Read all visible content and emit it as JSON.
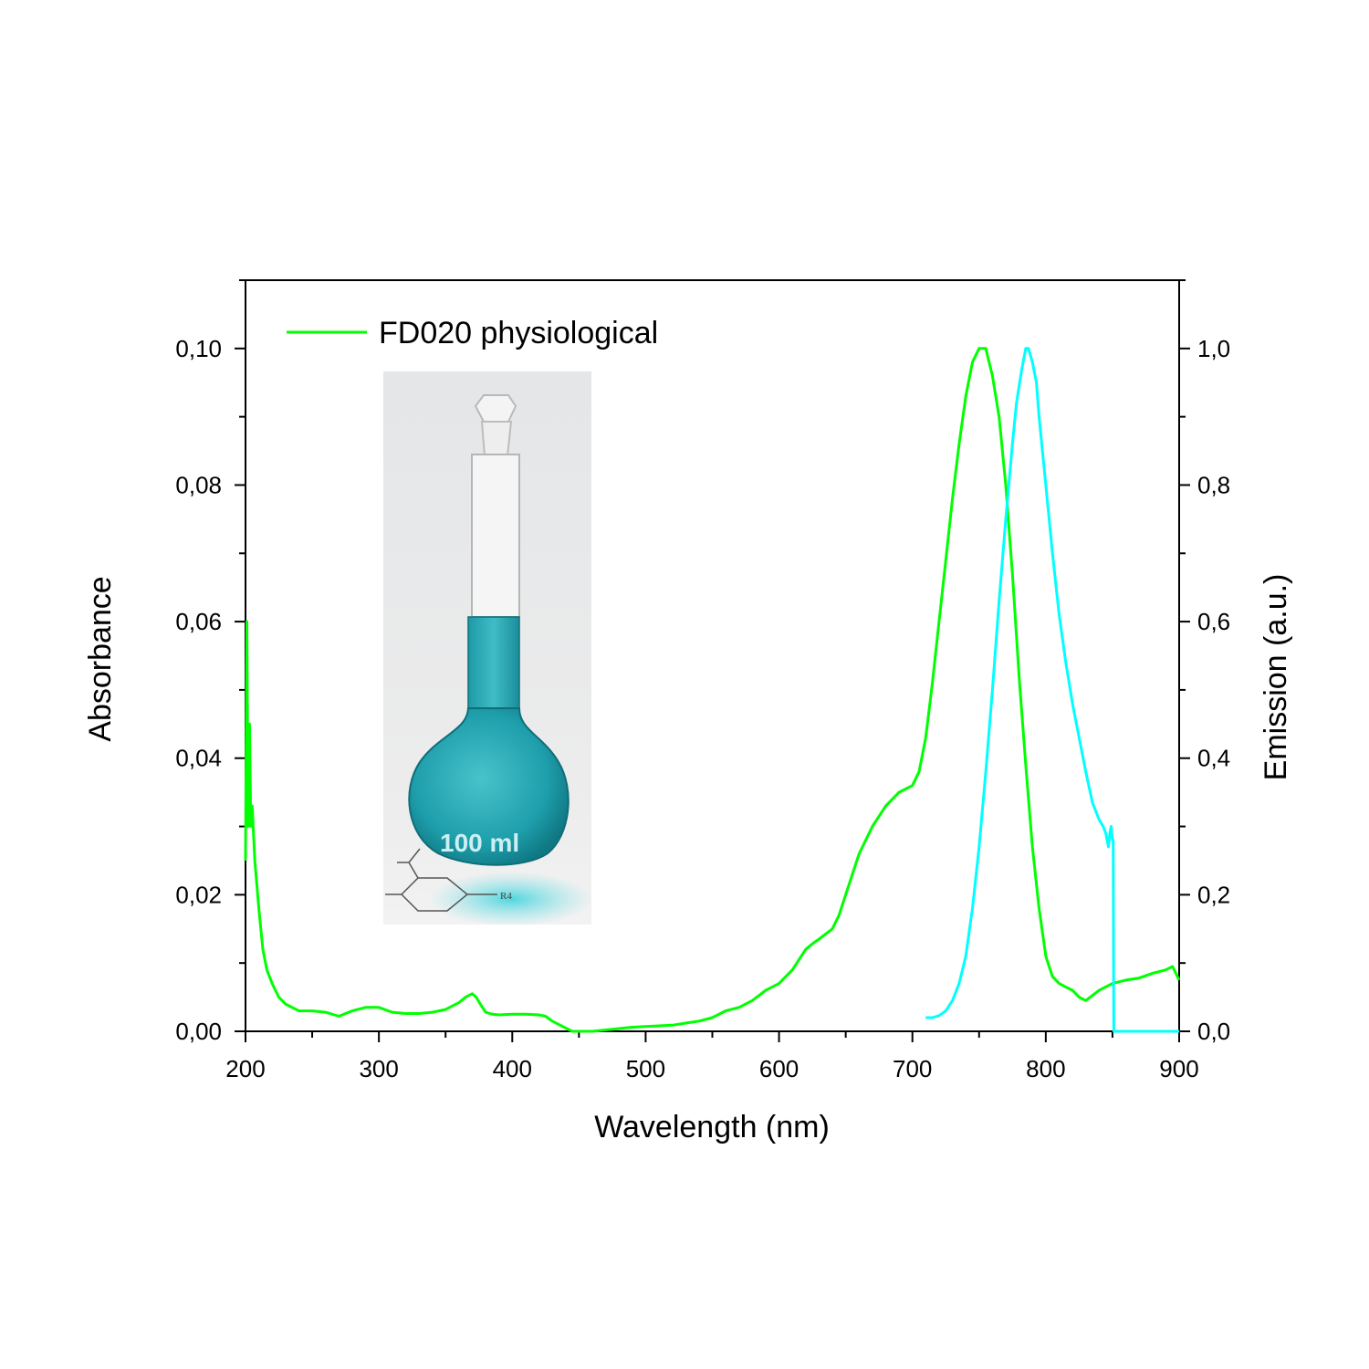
{
  "chart_data": {
    "type": "line",
    "legend": {
      "position": "top-left",
      "entries": [
        {
          "label": "FD020 physiological",
          "color": "#00ff00"
        }
      ]
    },
    "xlabel": "Wavelength (nm)",
    "ylabel_left": "Absorbance",
    "ylabel_right": "Emission (a.u.)",
    "xlim": [
      200,
      900
    ],
    "ylim_left": [
      0,
      0.11
    ],
    "ylim_right": [
      0,
      1.1
    ],
    "x_ticks": [
      "200",
      "300",
      "400",
      "500",
      "600",
      "700",
      "800",
      "900"
    ],
    "y_left_ticks": [
      "0,00",
      "0,02",
      "0,04",
      "0,06",
      "0,08",
      "0,10"
    ],
    "y_right_ticks": [
      "0,0",
      "0,2",
      "0,4",
      "0,6",
      "0,8",
      "1,0"
    ],
    "grid": false,
    "inset_image": {
      "subject": "volumetric flask with teal-blue solution",
      "flask_marking": "100 ml",
      "structure_label": "R4"
    },
    "series": [
      {
        "name": "FD020 physiological",
        "axis": "left",
        "color": "#00ff00",
        "x": [
          200,
          201,
          202,
          203,
          204,
          205,
          207,
          210,
          213,
          216,
          220,
          225,
          230,
          235,
          240,
          245,
          250,
          260,
          270,
          280,
          290,
          300,
          310,
          320,
          330,
          340,
          350,
          360,
          365,
          370,
          373,
          376,
          380,
          385,
          390,
          400,
          410,
          420,
          425,
          430,
          440,
          445,
          450,
          460,
          470,
          480,
          490,
          500,
          510,
          520,
          530,
          540,
          550,
          560,
          570,
          580,
          590,
          600,
          610,
          615,
          620,
          625,
          630,
          640,
          645,
          650,
          660,
          670,
          680,
          690,
          700,
          705,
          710,
          715,
          720,
          725,
          730,
          735,
          740,
          745,
          750,
          755,
          760,
          765,
          770,
          775,
          780,
          785,
          790,
          795,
          800,
          805,
          810,
          815,
          820,
          825,
          830,
          840,
          850,
          860,
          870,
          880,
          890,
          895,
          900
        ],
        "y": [
          0.025,
          0.06,
          0.03,
          0.045,
          0.03,
          0.033,
          0.025,
          0.018,
          0.012,
          0.009,
          0.007,
          0.005,
          0.004,
          0.0035,
          0.003,
          0.003,
          0.003,
          0.0028,
          0.0022,
          0.003,
          0.0035,
          0.0035,
          0.0028,
          0.0026,
          0.0026,
          0.0028,
          0.0032,
          0.0042,
          0.005,
          0.0055,
          0.005,
          0.004,
          0.0028,
          0.0025,
          0.0024,
          0.0025,
          0.0025,
          0.0024,
          0.0022,
          0.0015,
          0.0005,
          0.0,
          0.0,
          0.0,
          0.0002,
          0.0004,
          0.0006,
          0.0007,
          0.0008,
          0.0009,
          0.0012,
          0.0015,
          0.002,
          0.003,
          0.0035,
          0.0045,
          0.006,
          0.007,
          0.009,
          0.0105,
          0.012,
          0.0128,
          0.0135,
          0.015,
          0.017,
          0.02,
          0.026,
          0.03,
          0.033,
          0.035,
          0.036,
          0.038,
          0.043,
          0.051,
          0.06,
          0.069,
          0.078,
          0.086,
          0.093,
          0.098,
          0.1,
          0.1,
          0.096,
          0.09,
          0.08,
          0.067,
          0.052,
          0.039,
          0.027,
          0.018,
          0.011,
          0.008,
          0.007,
          0.0065,
          0.006,
          0.005,
          0.0045,
          0.006,
          0.007,
          0.0075,
          0.0078,
          0.0085,
          0.009,
          0.0095,
          0.0075
        ]
      },
      {
        "axis": "right",
        "color": "#00ffff",
        "x": [
          710,
          715,
          720,
          725,
          730,
          735,
          740,
          745,
          750,
          755,
          760,
          765,
          770,
          775,
          778,
          782,
          785,
          787,
          790,
          793,
          795,
          800,
          805,
          810,
          815,
          820,
          825,
          830,
          835,
          840,
          843,
          845,
          847,
          848,
          849,
          850,
          850.5,
          851,
          860,
          870,
          880,
          890,
          900
        ],
        "y": [
          0.02,
          0.02,
          0.023,
          0.03,
          0.045,
          0.07,
          0.11,
          0.18,
          0.27,
          0.38,
          0.5,
          0.63,
          0.75,
          0.86,
          0.92,
          0.97,
          1.0,
          1.0,
          0.98,
          0.95,
          0.9,
          0.8,
          0.7,
          0.61,
          0.54,
          0.48,
          0.43,
          0.38,
          0.335,
          0.31,
          0.3,
          0.29,
          0.27,
          0.29,
          0.3,
          0.28,
          0.28,
          0.0,
          0.0,
          0.0,
          0.0,
          0.0,
          0.0
        ]
      }
    ]
  }
}
